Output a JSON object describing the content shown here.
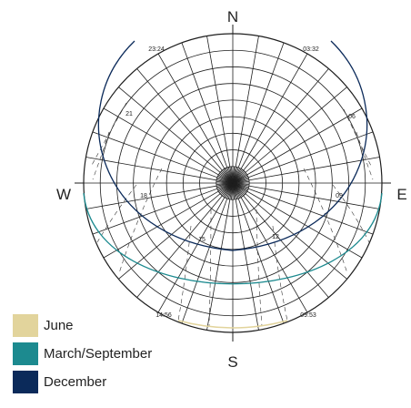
{
  "directions": {
    "north": "N",
    "south": "S",
    "east": "E",
    "west": "W"
  },
  "hour_labels": {
    "h2324": "23:24",
    "h0332": "03:32",
    "h21": "21",
    "h06": "06",
    "h18": "18",
    "h09": "09",
    "h15": "15",
    "h12": "12",
    "h1456": "14:56",
    "h0953": "09:53"
  },
  "legend": {
    "june": {
      "label": "June",
      "color": "#e2d49c"
    },
    "equinox": {
      "label": "March/September",
      "color": "#1c8a8f"
    },
    "december": {
      "label": "December",
      "color": "#0b2a5a"
    }
  }
}
